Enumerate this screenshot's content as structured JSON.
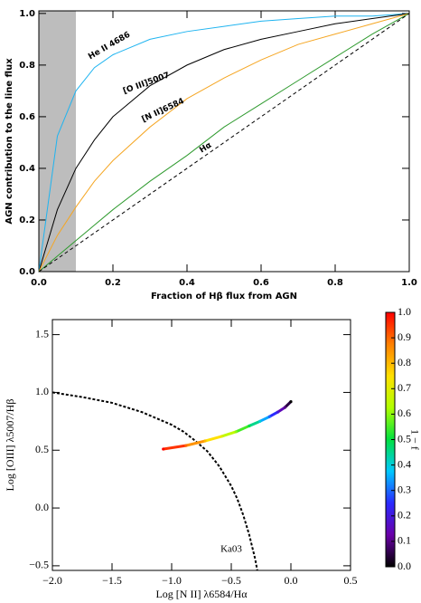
{
  "chart_data": [
    {
      "type": "line",
      "xlabel": "Fraction of Hβ flux from AGN",
      "ylabel": "AGN contribution to the line flux",
      "x": [
        0,
        0.05,
        0.1,
        0.15,
        0.2,
        0.3,
        0.4,
        0.5,
        0.6,
        0.7,
        0.8,
        0.9,
        1
      ],
      "series": [
        {
          "name": "He II 4686",
          "color": "#1fb4f0",
          "values": [
            0,
            0.525,
            0.7,
            0.79,
            0.84,
            0.9,
            0.93,
            0.95,
            0.97,
            0.98,
            0.99,
            0.99,
            1
          ]
        },
        {
          "name": "[O III]5007",
          "color": "#000000",
          "values": [
            0,
            0.24,
            0.4,
            0.51,
            0.6,
            0.72,
            0.8,
            0.86,
            0.9,
            0.93,
            0.96,
            0.98,
            1
          ]
        },
        {
          "name": "[N II]6584",
          "color": "#f5a623",
          "values": [
            0,
            0.14,
            0.25,
            0.35,
            0.43,
            0.56,
            0.67,
            0.75,
            0.82,
            0.88,
            0.92,
            0.96,
            1
          ]
        },
        {
          "name": "Hα",
          "color": "#2e9a2e",
          "values": [
            0,
            0.06,
            0.12,
            0.18,
            0.24,
            0.35,
            0.45,
            0.56,
            0.65,
            0.74,
            0.83,
            0.92,
            1
          ]
        },
        {
          "color": "#000000",
          "dash": true,
          "values": [
            0,
            0.05,
            0.1,
            0.15,
            0.2,
            0.3,
            0.4,
            0.5,
            0.6,
            0.7,
            0.8,
            0.9,
            1
          ]
        }
      ],
      "shade": [
        0,
        0.1
      ],
      "shade_color": "#bdbdbd",
      "xlim": [
        0,
        1
      ],
      "ylim": [
        0,
        1.01
      ],
      "xticks": [
        {
          "value": 0,
          "label": "0.0"
        },
        {
          "value": 0.2,
          "label": "0.2"
        },
        {
          "value": 0.4,
          "label": "0.4"
        },
        {
          "value": 0.6,
          "label": "0.6"
        },
        {
          "value": 0.8,
          "label": "0.8"
        },
        {
          "value": 1,
          "label": "1.0"
        }
      ],
      "yticks": [
        {
          "value": 0,
          "label": "0.0"
        },
        {
          "value": 0.2,
          "label": "0.2"
        },
        {
          "value": 0.4,
          "label": "0.4"
        },
        {
          "value": 0.6,
          "label": "0.6"
        },
        {
          "value": 0.8,
          "label": "0.8"
        },
        {
          "value": 1,
          "label": "1.0"
        }
      ]
    },
    {
      "type": "scatter",
      "xlabel": "Log [N II] λ6584/Hα",
      "ylabel": "Log [OIII] λ5007/Hβ",
      "x": [
        -1.07,
        -0.88,
        -0.72,
        -0.58,
        -0.46,
        -0.35,
        -0.26,
        -0.18,
        -0.11,
        -0.05,
        0
      ],
      "y": [
        0.51,
        0.54,
        0.58,
        0.62,
        0.66,
        0.71,
        0.75,
        0.79,
        0.83,
        0.87,
        0.92
      ],
      "c": [
        1,
        0.9,
        0.8,
        0.7,
        0.6,
        0.5,
        0.4,
        0.3,
        0.2,
        0.1,
        0
      ],
      "colormap": [
        "#000000",
        "#6a00a8",
        "#2a2aff",
        "#00c8ff",
        "#00e040",
        "#b0ff00",
        "#ffe000",
        "#ff8000",
        "#ff0000"
      ],
      "clim": [
        0,
        1
      ],
      "clabel": "1 − f",
      "cticks": [
        {
          "value": 0,
          "label": "0.0"
        },
        {
          "value": 0.1,
          "label": "0.1"
        },
        {
          "value": 0.2,
          "label": "0.2"
        },
        {
          "value": 0.3,
          "label": "0.3"
        },
        {
          "value": 0.4,
          "label": "0.4"
        },
        {
          "value": 0.5,
          "label": "0.5"
        },
        {
          "value": 0.6,
          "label": "0.6"
        },
        {
          "value": 0.7,
          "label": "0.7"
        },
        {
          "value": 0.8,
          "label": "0.8"
        },
        {
          "value": 0.9,
          "label": "0.9"
        },
        {
          "value": 1,
          "label": "1.0"
        }
      ],
      "curve": {
        "name": "Ka03",
        "color": "#000000",
        "dash": true,
        "x": [
          -2,
          -1.75,
          -1.5,
          -1.25,
          -1,
          -0.9,
          -0.8,
          -0.7,
          -0.6,
          -0.5,
          -0.45,
          -0.4,
          -0.35,
          -0.3,
          -0.28
        ],
        "y": [
          1.0,
          0.96,
          0.91,
          0.83,
          0.72,
          0.66,
          0.58,
          0.49,
          0.36,
          0.19,
          0.08,
          -0.06,
          -0.23,
          -0.44,
          -0.55
        ]
      },
      "xlim": [
        -2,
        0.5
      ],
      "ylim": [
        -0.54,
        1.63
      ],
      "xticks": [
        {
          "value": -2,
          "label": "−2.0"
        },
        {
          "value": -1.5,
          "label": "−1.5"
        },
        {
          "value": -1,
          "label": "−1.0"
        },
        {
          "value": -0.5,
          "label": "−0.5"
        },
        {
          "value": 0,
          "label": "0.0"
        },
        {
          "value": 0.5,
          "label": "0.5"
        }
      ],
      "yticks": [
        {
          "value": -0.5,
          "label": "−0.5"
        },
        {
          "value": 0,
          "label": "0.0"
        },
        {
          "value": 0.5,
          "label": "0.5"
        },
        {
          "value": 1,
          "label": "1.0"
        },
        {
          "value": 1.5,
          "label": "1.5"
        }
      ]
    }
  ]
}
